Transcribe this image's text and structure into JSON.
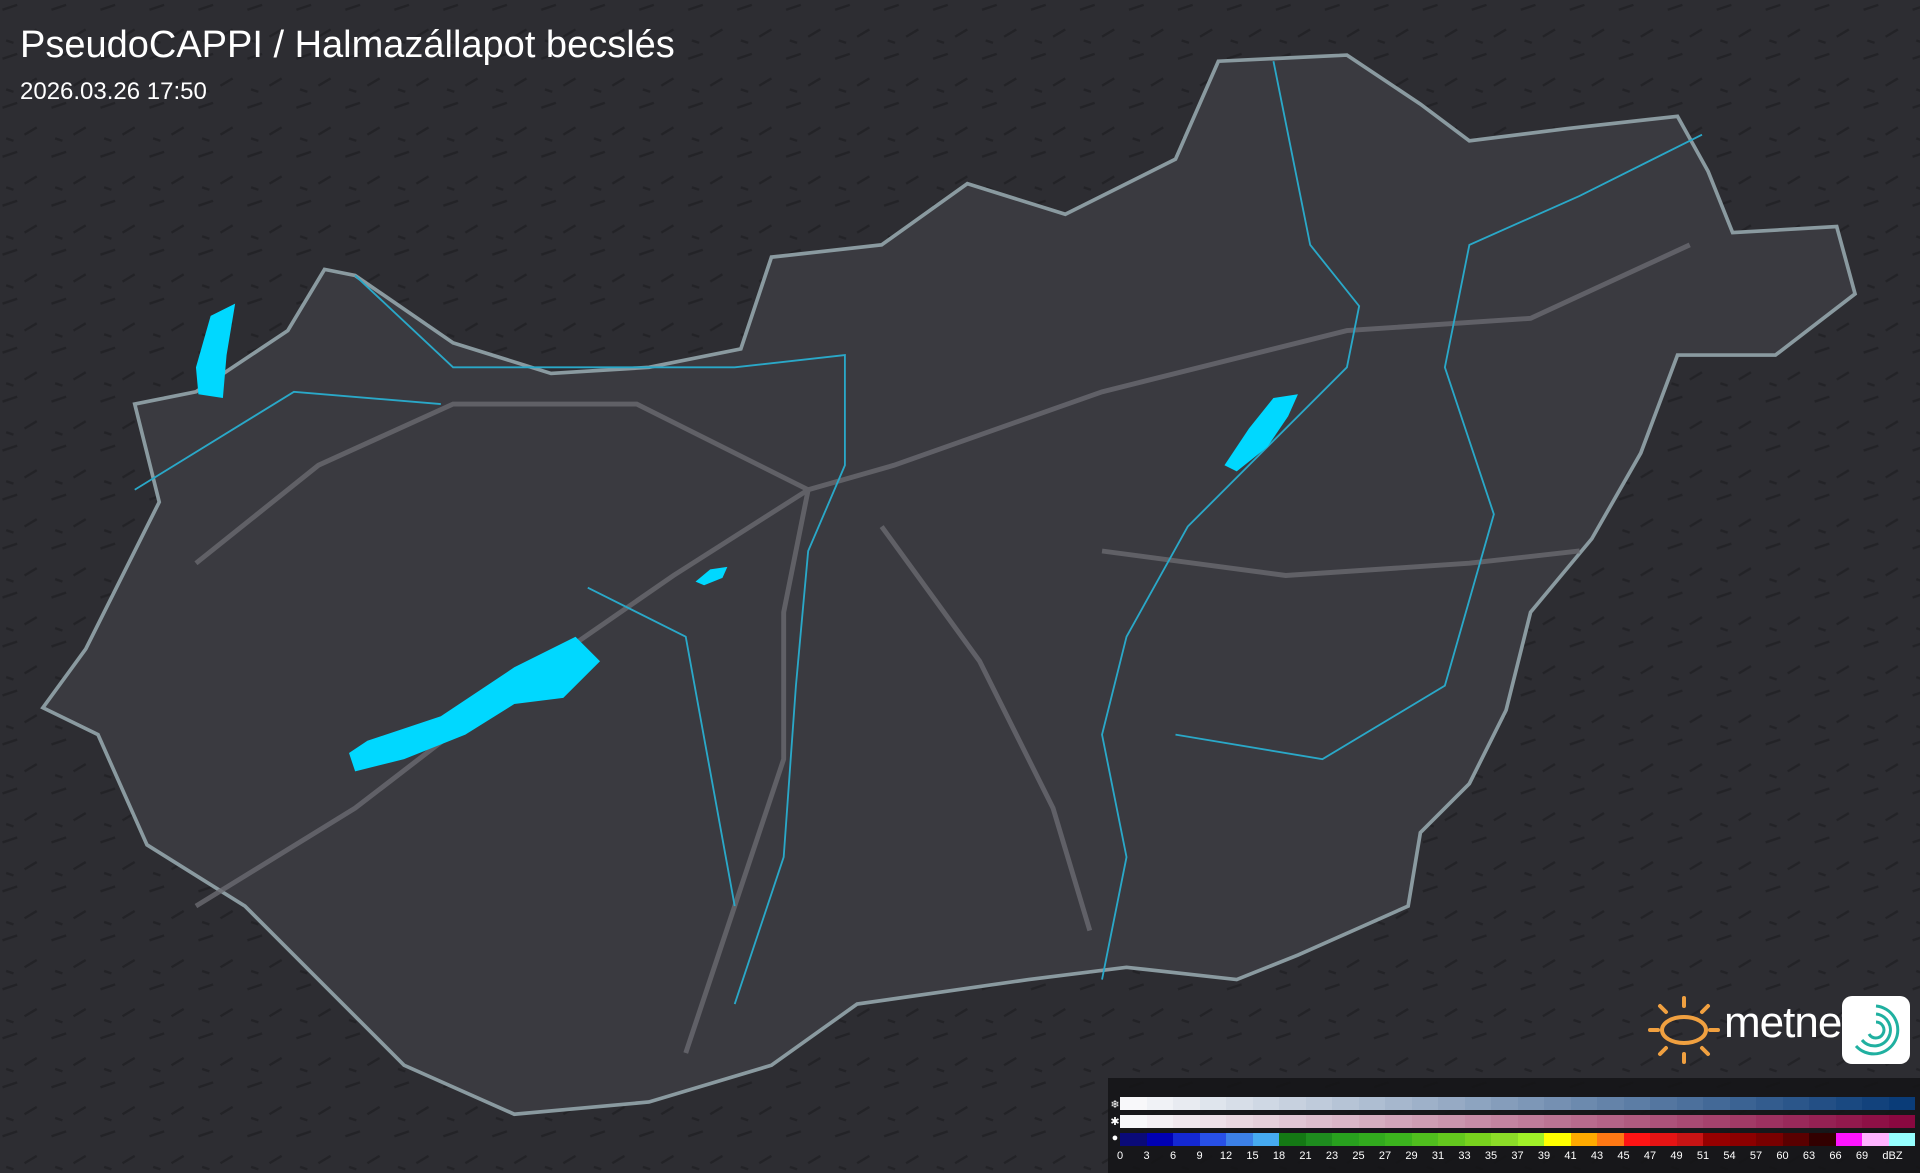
{
  "header": {
    "title": "PseudoCAPPI  / Halmazállapot becslés",
    "timestamp": "2026.03.26 17:50"
  },
  "logo": {
    "brand": "metnet",
    "sun_color": "#f0a040"
  },
  "legend": {
    "unit": "dBZ",
    "ticks": [
      "0",
      "3",
      "6",
      "9",
      "12",
      "15",
      "18",
      "21",
      "23",
      "25",
      "27",
      "29",
      "31",
      "33",
      "35",
      "37",
      "39",
      "41",
      "43",
      "45",
      "47",
      "49",
      "51",
      "54",
      "57",
      "60",
      "63",
      "66",
      "69"
    ],
    "rows": [
      {
        "type": "snow",
        "icon": "snowflake-icon",
        "from": "#f8f8fa",
        "to": "#0a3c78"
      },
      {
        "type": "mixed",
        "icon": "sleet-icon",
        "from": "#f8f8fa",
        "to": "#8a0840"
      },
      {
        "type": "rain",
        "icon": "raindrop-icon",
        "colors": [
          "#0a0a78",
          "#0000b4",
          "#1428d2",
          "#2850e6",
          "#3c80e6",
          "#46aaf0",
          "#147814",
          "#1e8c1e",
          "#28a01e",
          "#32aa1e",
          "#3cb41e",
          "#50be1e",
          "#64c81e",
          "#78d21e",
          "#8cdc28",
          "#a0f028",
          "#ffff00",
          "#ffaa00",
          "#ff7814",
          "#ff1414",
          "#e61414",
          "#c81414",
          "#960000",
          "#8c0000",
          "#780000",
          "#5a0000",
          "#320000",
          "#ff14ff",
          "#ffb4ff",
          "#96ffff"
        ]
      }
    ]
  },
  "map": {
    "water_color": "#00d8ff",
    "border_color": "#8a9aa0",
    "river_color": "#2aa8c8"
  }
}
